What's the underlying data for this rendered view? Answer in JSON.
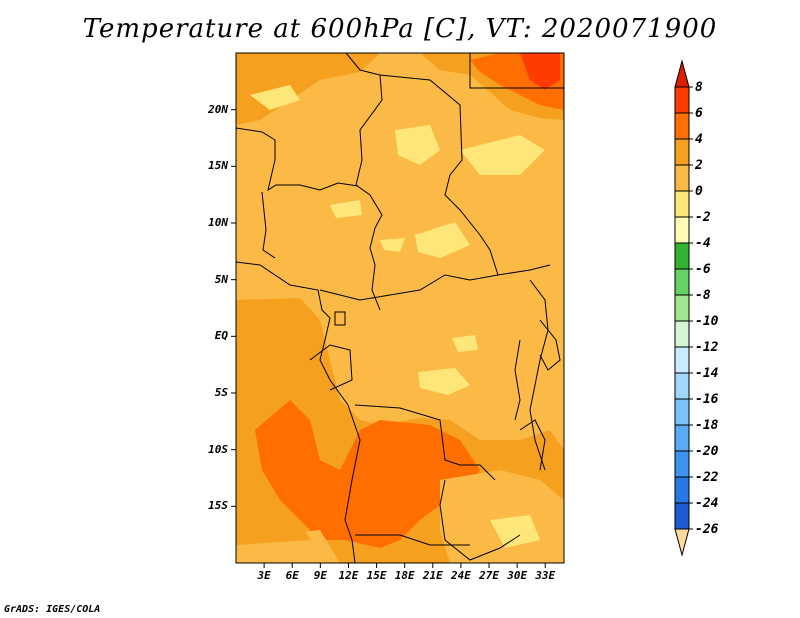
{
  "title": "Temperature at 600hPa [C], VT: 2020071900",
  "credit": "GrADS: IGES/COLA",
  "map": {
    "lon_range": [
      0,
      35
    ],
    "lat_range": [
      -20,
      25
    ],
    "lat_ticks": [
      {
        "value": 20,
        "label": "20N"
      },
      {
        "value": 15,
        "label": "15N"
      },
      {
        "value": 10,
        "label": "10N"
      },
      {
        "value": 5,
        "label": "5N"
      },
      {
        "value": 0,
        "label": "EQ"
      },
      {
        "value": -5,
        "label": "5S"
      },
      {
        "value": -10,
        "label": "10S"
      },
      {
        "value": -15,
        "label": "15S"
      }
    ],
    "lon_ticks": [
      {
        "value": 3,
        "label": "3E"
      },
      {
        "value": 6,
        "label": "6E"
      },
      {
        "value": 9,
        "label": "9E"
      },
      {
        "value": 12,
        "label": "12E"
      },
      {
        "value": 15,
        "label": "15E"
      },
      {
        "value": 18,
        "label": "18E"
      },
      {
        "value": 21,
        "label": "21E"
      },
      {
        "value": 24,
        "label": "24E"
      },
      {
        "value": 27,
        "label": "27E"
      },
      {
        "value": 30,
        "label": "30E"
      },
      {
        "value": 33,
        "label": "33E"
      }
    ],
    "background_color": "#fbb946"
  },
  "colorbar": {
    "labels": [
      "8",
      "6",
      "4",
      "2",
      "0",
      "-2",
      "-4",
      "-6",
      "-8",
      "-10",
      "-12",
      "-14",
      "-16",
      "-18",
      "-20",
      "-22",
      "-24",
      "-26"
    ],
    "colors": [
      "#ffdb9e",
      "#1e1ea0",
      "#143cb4",
      "#1e5ad2",
      "#2878e6",
      "#3c94f0",
      "#5aaaf5",
      "#78c3fa",
      "#a0d7fc",
      "#c8ebff",
      "#d2f5d2",
      "#a0e68c",
      "#64d264",
      "#32b432",
      "#fffab4",
      "#ffe678",
      "#fbb946",
      "#f5a01e",
      "#ff6e00",
      "#ff3c00",
      "#dc1e00"
    ]
  }
}
